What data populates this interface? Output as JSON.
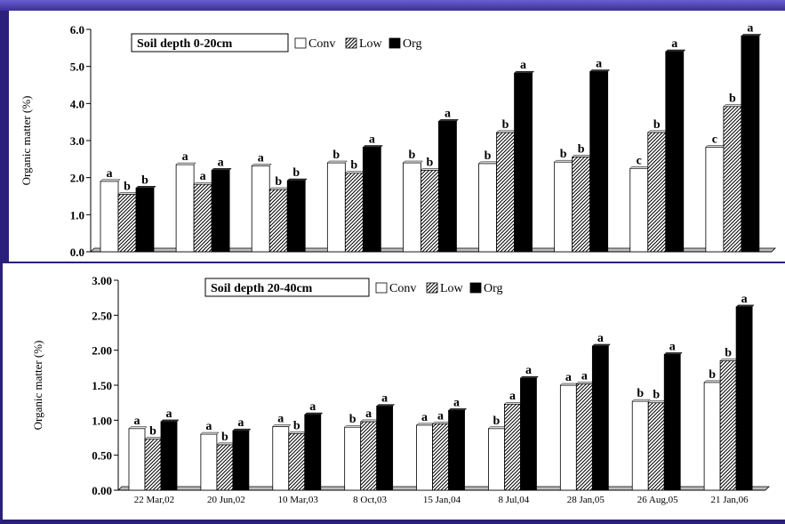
{
  "chart_data": [
    {
      "type": "bar",
      "title": "",
      "legend_title": "Soil depth 0-20cm",
      "ylabel": "Organic matter (%)",
      "xlabel": "",
      "ylim": [
        0,
        6
      ],
      "yticks": [
        "0.0",
        "1.0",
        "2.0",
        "3.0",
        "4.0",
        "5.0",
        "6.0"
      ],
      "legend_position": "top-left",
      "categories": [
        "22 Mar,02",
        "20 Jun,02",
        "10 Mar,03",
        "8 Oct,03",
        "15 Jan,04",
        "8 Jul,04",
        "28 Jan,05",
        "26 Aug,05",
        "21 Jan,06"
      ],
      "show_category_labels": false,
      "series": [
        {
          "name": "Conv",
          "style": "white",
          "values": [
            1.9,
            2.35,
            2.32,
            2.4,
            2.4,
            2.38,
            2.42,
            2.25,
            2.82
          ],
          "labels": [
            "a",
            "a",
            "a",
            "b",
            "b",
            "b",
            "b",
            "c",
            "c"
          ]
        },
        {
          "name": "Low",
          "style": "hatch",
          "values": [
            1.55,
            1.82,
            1.68,
            2.12,
            2.2,
            3.22,
            2.56,
            3.22,
            3.92
          ],
          "labels": [
            "b",
            "a",
            "b",
            "b",
            "b",
            "b",
            "b",
            "b",
            "b"
          ]
        },
        {
          "name": "Org",
          "style": "black",
          "values": [
            1.72,
            2.2,
            1.92,
            2.82,
            3.52,
            4.82,
            4.86,
            5.4,
            5.82
          ],
          "labels": [
            "b",
            "a",
            "b",
            "a",
            "a",
            "a",
            "a",
            "a",
            "a"
          ]
        }
      ]
    },
    {
      "type": "bar",
      "title": "",
      "legend_title": "Soil depth 20-40cm",
      "ylabel": "Organic matter (%)",
      "xlabel": "",
      "ylim": [
        0,
        3
      ],
      "yticks": [
        "0.00",
        "0.50",
        "1.00",
        "1.50",
        "2.00",
        "2.50",
        "3.00"
      ],
      "legend_position": "top-left",
      "categories": [
        "22 Mar,02",
        "20 Jun,02",
        "10 Mar,03",
        "8 Oct,03",
        "15 Jan,04",
        "8 Jul,04",
        "28 Jan,05",
        "26 Aug,05",
        "21 Jan,06"
      ],
      "show_category_labels": true,
      "series": [
        {
          "name": "Conv",
          "style": "white",
          "values": [
            0.88,
            0.8,
            0.91,
            0.9,
            0.93,
            0.88,
            1.5,
            1.27,
            1.54
          ],
          "labels": [
            "a",
            "a",
            "a",
            "b",
            "a",
            "b",
            "a",
            "b",
            "b"
          ]
        },
        {
          "name": "Low",
          "style": "hatch",
          "values": [
            0.73,
            0.65,
            0.81,
            0.98,
            0.95,
            1.23,
            1.52,
            1.25,
            1.85
          ],
          "labels": [
            "b",
            "b",
            "b",
            "a",
            "a",
            "a",
            "a",
            "b",
            "b"
          ]
        },
        {
          "name": "Org",
          "style": "black",
          "values": [
            0.98,
            0.85,
            1.08,
            1.2,
            1.14,
            1.6,
            2.06,
            1.94,
            2.62
          ],
          "labels": [
            "a",
            "a",
            "a",
            "a",
            "a",
            "a",
            "a",
            "a",
            "a"
          ]
        }
      ]
    }
  ]
}
